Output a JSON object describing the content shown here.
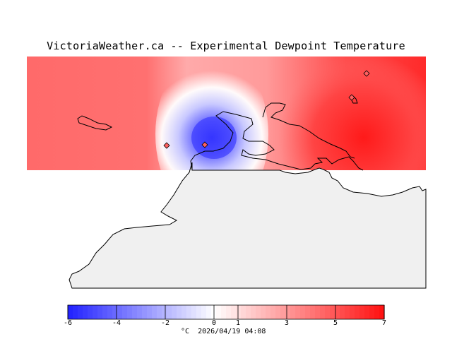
{
  "title": "VictoriaWeather.ca -- Experimental Dewpoint Temperature",
  "colorbar": {
    "min": -6,
    "max": 7,
    "colors": {
      "cold": "#2020ff",
      "neutral": "#ffffff",
      "warm": "#ff1010"
    },
    "ticks": [
      {
        "value": -6,
        "label": "-6"
      },
      {
        "value": -4,
        "label": "-4"
      },
      {
        "value": -2,
        "label": "-2"
      },
      {
        "value": 0,
        "label": "0"
      },
      {
        "value": 1,
        "label": "1"
      },
      {
        "value": 3,
        "label": "3"
      },
      {
        "value": 5,
        "label": "5"
      },
      {
        "value": 7,
        "label": "7"
      }
    ],
    "unit": "°C",
    "timestamp": "2026/04/19 04:08"
  },
  "map": {
    "land_color": "#f0f0f0",
    "coast_color": "#000000",
    "station_marker": "diamond-icon"
  }
}
